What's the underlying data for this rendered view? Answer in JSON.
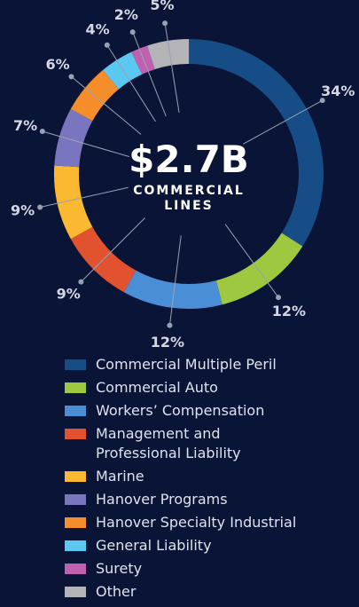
{
  "chart_data": {
    "type": "donut",
    "center_label": "$2.7B",
    "center_sublabel": "COMMERCIAL LINES",
    "categories": [
      "Commercial Multiple Peril",
      "Commercial Auto",
      "Workers’ Compensation",
      "Management and Professional Liability",
      "Marine",
      "Hanover Programs",
      "Hanover Specialty Industrial",
      "General Liability",
      "Surety",
      "Other"
    ],
    "values": [
      34,
      12,
      12,
      9,
      9,
      7,
      6,
      4,
      2,
      5
    ],
    "value_labels": [
      "34%",
      "12%",
      "12%",
      "9%",
      "9%",
      "7%",
      "6%",
      "4%",
      "2%",
      "5%"
    ],
    "colors": [
      "#174d86",
      "#9dc83f",
      "#4a8fd6",
      "#e2522f",
      "#fbb831",
      "#7a75bf",
      "#f58d2a",
      "#5bc8f2",
      "#c060b0",
      "#b3b3b8"
    ]
  }
}
